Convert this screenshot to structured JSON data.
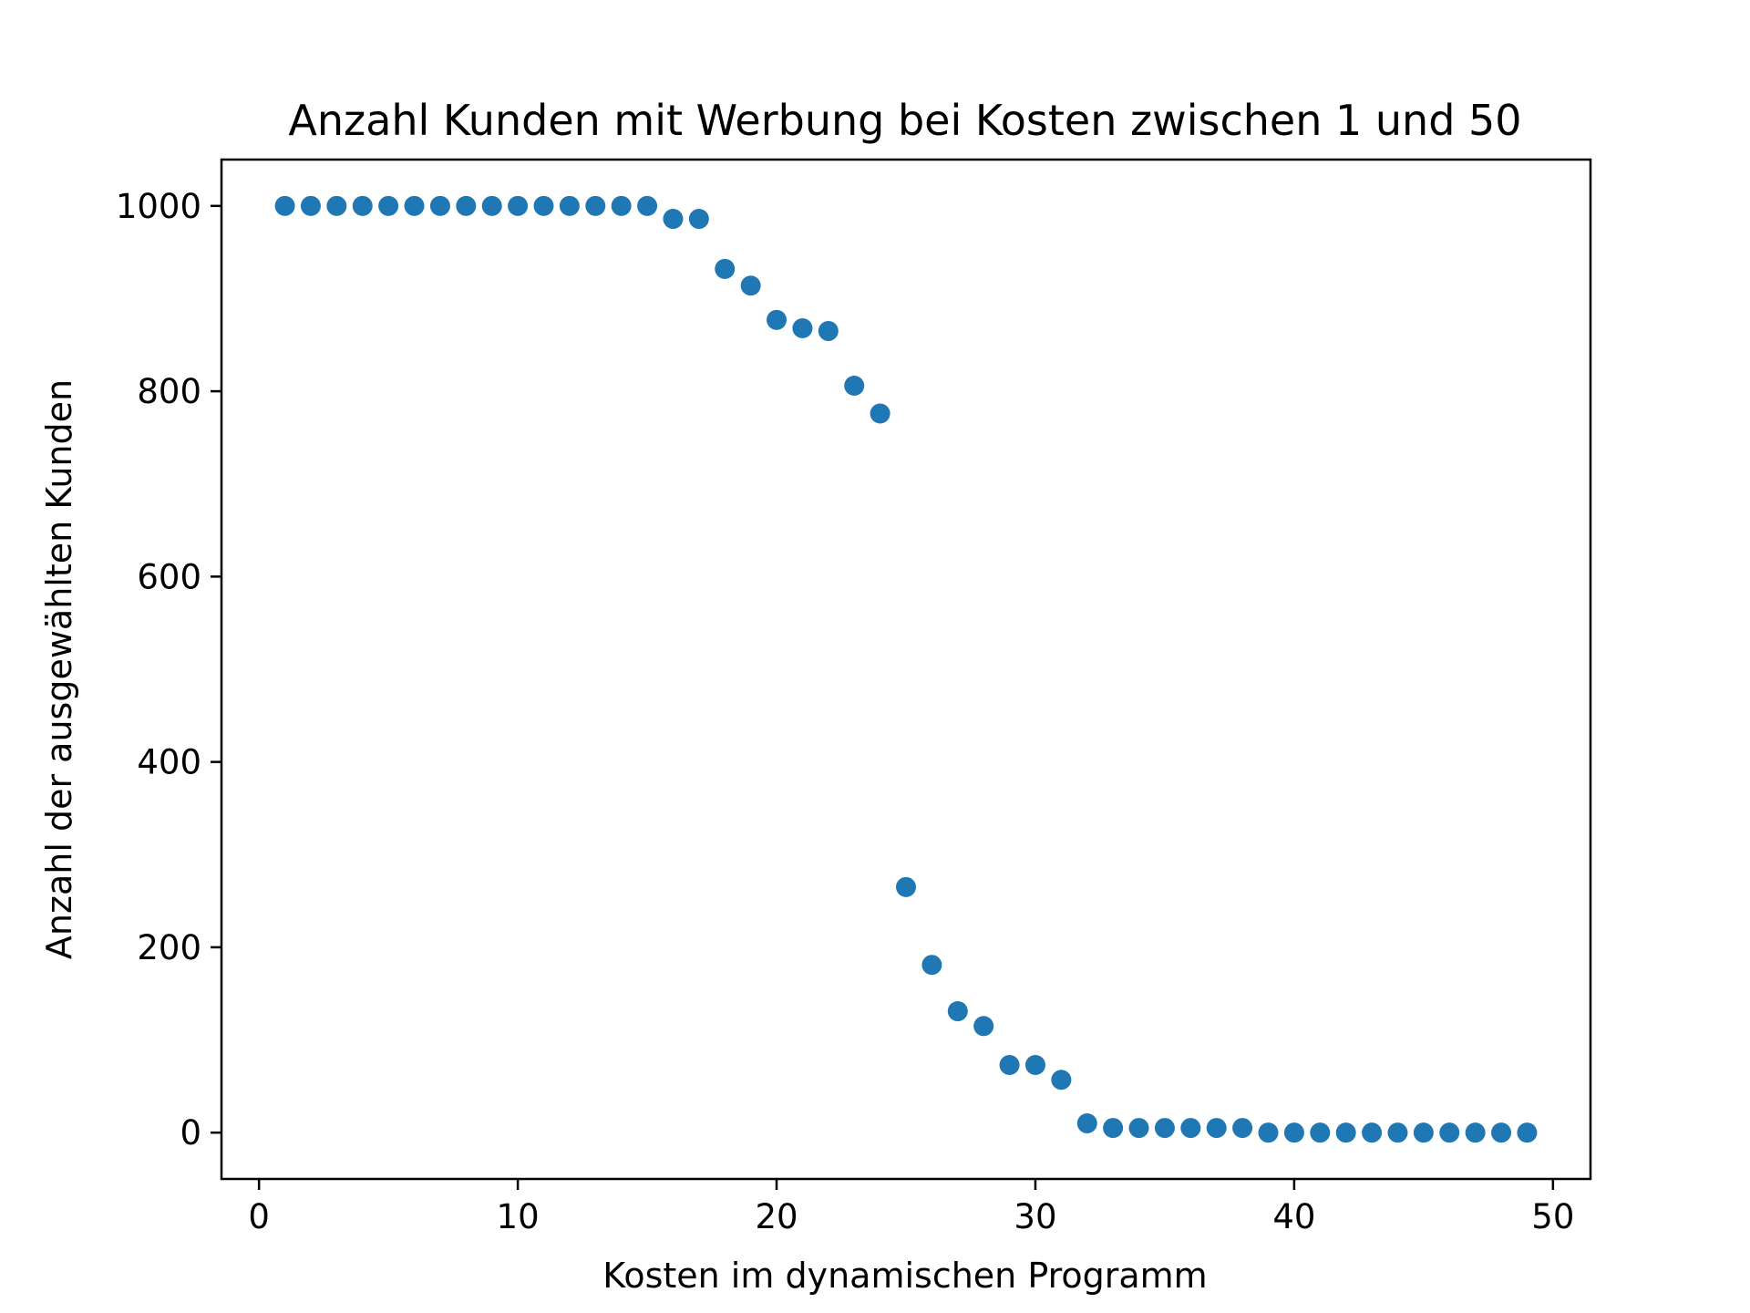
{
  "chart_data": {
    "type": "scatter",
    "title": "Anzahl Kunden mit Werbung bei Kosten zwischen 1 und 50",
    "xlabel": "Kosten im dynamischen Programm",
    "ylabel": "Anzahl der ausgewählten Kunden",
    "xlim": [
      -1.45,
      51.45
    ],
    "ylim": [
      -50,
      1050
    ],
    "xticks": [
      0,
      10,
      20,
      30,
      40,
      50
    ],
    "yticks": [
      0,
      200,
      400,
      600,
      800,
      1000
    ],
    "xtick_labels": [
      "0",
      "10",
      "20",
      "30",
      "40",
      "50"
    ],
    "ytick_labels": [
      "0",
      "200",
      "400",
      "600",
      "800",
      "1000"
    ],
    "grid": false,
    "color": "#1f77b4",
    "x": [
      1,
      2,
      3,
      4,
      5,
      6,
      7,
      8,
      9,
      10,
      11,
      12,
      13,
      14,
      15,
      16,
      17,
      18,
      19,
      20,
      21,
      22,
      23,
      24,
      25,
      26,
      27,
      28,
      29,
      30,
      31,
      32,
      33,
      34,
      35,
      36,
      37,
      38,
      39,
      40,
      41,
      42,
      43,
      44,
      45,
      46,
      47,
      48,
      49
    ],
    "y": [
      1000,
      1000,
      1000,
      1000,
      1000,
      1000,
      1000,
      1000,
      1000,
      1000,
      1000,
      1000,
      1000,
      1000,
      1000,
      986,
      986,
      932,
      914,
      877,
      868,
      865,
      806,
      776,
      265,
      181,
      131,
      115,
      73,
      73,
      57,
      10,
      5,
      5,
      5,
      5,
      5,
      5,
      0,
      0,
      0,
      0,
      0,
      0,
      0,
      0,
      0,
      0,
      0
    ]
  }
}
